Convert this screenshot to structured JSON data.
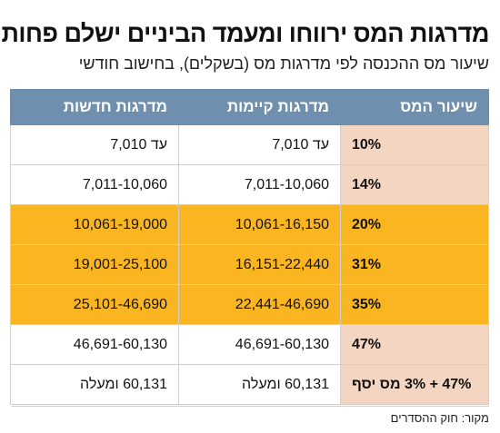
{
  "title": "מדרגות המס ירווחו ומעמד הביניים ישלם פחות",
  "subtitle": "שיעור מס ההכנסה לפי מדרגות מס (בשקלים), בחישוב חודשי",
  "source": "מקור: חוק ההסדרים",
  "colors": {
    "header": "#6e8fae",
    "highlight_orange": "#f9b621",
    "rate_peach": "#f3d5c2"
  },
  "chart_data": {
    "type": "table",
    "columns": [
      "שיעור המס",
      "מדרגות קיימות",
      "מדרגות חדשות"
    ],
    "rows": [
      {
        "rate": "10%",
        "existing": "עד 7,010",
        "new": "עד 7,010",
        "style": "white"
      },
      {
        "rate": "14%",
        "existing": "7,011-10,060",
        "new": "7,011-10,060",
        "style": "white"
      },
      {
        "rate": "20%",
        "existing": "10,061-16,150",
        "new": "10,061-19,000",
        "style": "orange"
      },
      {
        "rate": "31%",
        "existing": "16,151-22,440",
        "new": "19,001-25,100",
        "style": "orange"
      },
      {
        "rate": "35%",
        "existing": "22,441-46,690",
        "new": "25,101-46,690",
        "style": "orange"
      },
      {
        "rate": "47%",
        "existing": "46,691-60,130",
        "new": "46,691-60,130",
        "style": "white"
      },
      {
        "rate": "47% + 3% מס יסף",
        "existing": "60,131 ומעלה",
        "new": "60,131 ומעלה",
        "style": "white"
      }
    ]
  }
}
